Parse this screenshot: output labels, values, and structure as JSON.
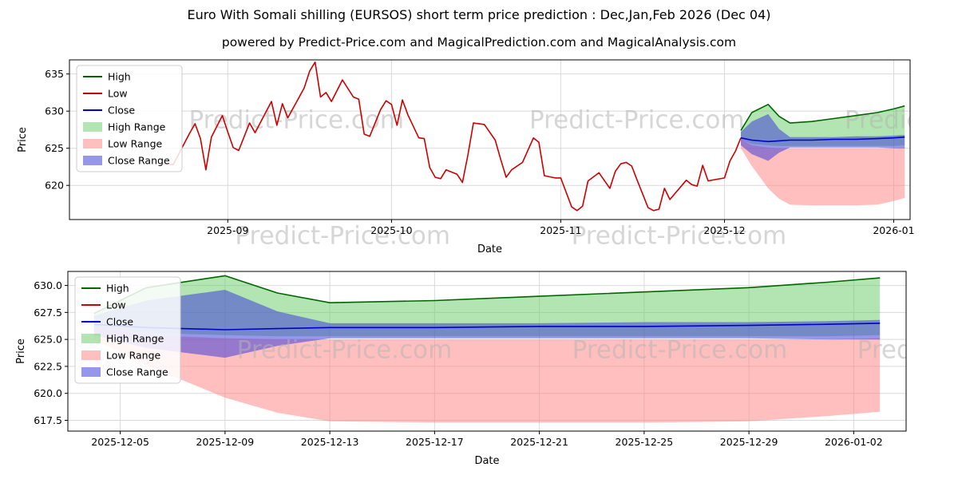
{
  "title": "Euro With Somali shilling (EURSOS) short term price prediction : Dec,Jan,Feb 2026 (Dec 04)",
  "subtitle": "powered by Predict-Price.com and MagicalPrediction.com and MagicalAnalysis.com",
  "watermark": "Predict-Price.com",
  "colors": {
    "high": "#006600",
    "low": "#cc0000",
    "close": "#0000cc",
    "high_range": "#66cc66",
    "low_range": "#ff8080",
    "close_range": "#4040d8",
    "grid": "#d9d9d9"
  },
  "legend": [
    {
      "label": "High",
      "type": "line",
      "color": "#006600"
    },
    {
      "label": "Low",
      "type": "line",
      "color": "#cc0000"
    },
    {
      "label": "Close",
      "type": "line",
      "color": "#0000cc"
    },
    {
      "label": "High Range",
      "type": "patch",
      "color": "#66cc66",
      "opacity": 0.5
    },
    {
      "label": "Low Range",
      "type": "patch",
      "color": "#ff8080",
      "opacity": 0.5
    },
    {
      "label": "Close Range",
      "type": "patch",
      "color": "#4040d8",
      "opacity": 0.55
    }
  ],
  "chart_data": [
    {
      "type": "line",
      "name": "price-history-with-prediction",
      "xlabel": "Date",
      "ylabel": "Price",
      "xlim": [
        "2025-08-03",
        "2026-01-04"
      ],
      "ylim": [
        615.4,
        636.9
      ],
      "grid": true,
      "legend_position": "upper left",
      "xtick_dates": [
        "2025-09-01",
        "2025-10-01",
        "2025-11-01",
        "2025-12-01",
        "2026-01-01"
      ],
      "xtick_labels": [
        "2025-09",
        "2025-10",
        "2025-11",
        "2025-12",
        "2026-01"
      ],
      "ytick_values": [
        620,
        625,
        630,
        635
      ],
      "ytick_labels": [
        "620",
        "625",
        "630",
        "635"
      ],
      "bands": [
        {
          "name": "High Range",
          "color": "#66cc66",
          "opacity": 0.5,
          "dates": [
            "2025-12-04",
            "2025-12-06",
            "2025-12-09",
            "2025-12-11",
            "2025-12-13",
            "2025-12-17",
            "2025-12-21",
            "2025-12-25",
            "2025-12-29",
            "2026-01-01",
            "2026-01-03"
          ],
          "upper": [
            627.4,
            629.8,
            630.9,
            629.3,
            628.4,
            628.6,
            629.0,
            629.4,
            629.8,
            630.3,
            630.7
          ],
          "lower": [
            626.2,
            625.6,
            625.4,
            625.3,
            625.3,
            625.3,
            625.3,
            625.3,
            625.3,
            625.3,
            625.4
          ]
        },
        {
          "name": "Low Range",
          "color": "#ff8080",
          "opacity": 0.5,
          "dates": [
            "2025-12-04",
            "2025-12-06",
            "2025-12-09",
            "2025-12-11",
            "2025-12-13",
            "2025-12-17",
            "2025-12-21",
            "2025-12-25",
            "2025-12-29",
            "2026-01-01",
            "2026-01-03"
          ],
          "upper": [
            626.2,
            625.4,
            625.1,
            625.0,
            625.0,
            625.0,
            625.0,
            625.0,
            625.0,
            625.0,
            625.1
          ],
          "lower": [
            625.0,
            622.6,
            619.6,
            618.2,
            617.4,
            617.3,
            617.3,
            617.3,
            617.4,
            617.9,
            618.3
          ]
        },
        {
          "name": "Close Range",
          "color": "#4040d8",
          "opacity": 0.55,
          "dates": [
            "2025-12-04",
            "2025-12-06",
            "2025-12-09",
            "2025-12-11",
            "2025-12-13",
            "2025-12-17",
            "2025-12-21",
            "2025-12-25",
            "2025-12-29",
            "2026-01-01",
            "2026-01-03"
          ],
          "upper": [
            627.2,
            628.6,
            629.6,
            627.6,
            626.5,
            626.5,
            626.5,
            626.6,
            626.6,
            626.7,
            626.8
          ],
          "lower": [
            625.4,
            624.2,
            623.3,
            624.4,
            625.1,
            625.1,
            625.1,
            625.1,
            625.1,
            625.0,
            625.0
          ]
        }
      ],
      "series": [
        {
          "name": "High",
          "color": "#006600",
          "points": [
            [
              "2025-12-04",
              627.4
            ],
            [
              "2025-12-06",
              629.8
            ],
            [
              "2025-12-09",
              630.9
            ],
            [
              "2025-12-11",
              629.3
            ],
            [
              "2025-12-13",
              628.4
            ],
            [
              "2025-12-17",
              628.6
            ],
            [
              "2025-12-21",
              629.0
            ],
            [
              "2025-12-25",
              629.4
            ],
            [
              "2025-12-29",
              629.8
            ],
            [
              "2026-01-01",
              630.3
            ],
            [
              "2026-01-03",
              630.7
            ]
          ]
        },
        {
          "name": "Low",
          "color": "#cc0000",
          "points": [
            [
              "2025-08-20",
              622.9
            ],
            [
              "2025-08-22",
              622.8
            ],
            [
              "2025-08-25",
              627.0
            ],
            [
              "2025-08-26",
              628.3
            ],
            [
              "2025-08-27",
              626.3
            ],
            [
              "2025-08-28",
              622.1
            ],
            [
              "2025-08-29",
              626.5
            ],
            [
              "2025-08-31",
              629.4
            ],
            [
              "2025-09-01",
              627.2
            ],
            [
              "2025-09-02",
              625.1
            ],
            [
              "2025-09-03",
              624.7
            ],
            [
              "2025-09-05",
              628.4
            ],
            [
              "2025-09-06",
              627.1
            ],
            [
              "2025-09-09",
              631.3
            ],
            [
              "2025-09-10",
              628.1
            ],
            [
              "2025-09-11",
              631.0
            ],
            [
              "2025-09-12",
              629.1
            ],
            [
              "2025-09-15",
              633.1
            ],
            [
              "2025-09-16",
              635.4
            ],
            [
              "2025-09-17",
              636.6
            ],
            [
              "2025-09-18",
              631.9
            ],
            [
              "2025-09-19",
              632.5
            ],
            [
              "2025-09-20",
              631.3
            ],
            [
              "2025-09-22",
              634.2
            ],
            [
              "2025-09-24",
              631.9
            ],
            [
              "2025-09-25",
              631.6
            ],
            [
              "2025-09-26",
              626.9
            ],
            [
              "2025-09-27",
              626.6
            ],
            [
              "2025-09-29",
              630.2
            ],
            [
              "2025-09-30",
              631.4
            ],
            [
              "2025-10-01",
              630.9
            ],
            [
              "2025-10-02",
              628.1
            ],
            [
              "2025-10-03",
              631.5
            ],
            [
              "2025-10-04",
              629.5
            ],
            [
              "2025-10-06",
              626.4
            ],
            [
              "2025-10-07",
              626.3
            ],
            [
              "2025-10-08",
              622.4
            ],
            [
              "2025-10-09",
              621.1
            ],
            [
              "2025-10-10",
              620.9
            ],
            [
              "2025-10-11",
              622.1
            ],
            [
              "2025-10-13",
              621.5
            ],
            [
              "2025-10-14",
              620.4
            ],
            [
              "2025-10-15",
              624.1
            ],
            [
              "2025-10-16",
              628.4
            ],
            [
              "2025-10-18",
              628.2
            ],
            [
              "2025-10-20",
              626.1
            ],
            [
              "2025-10-21",
              623.5
            ],
            [
              "2025-10-22",
              621.1
            ],
            [
              "2025-10-23",
              622.1
            ],
            [
              "2025-10-25",
              623.1
            ],
            [
              "2025-10-27",
              626.4
            ],
            [
              "2025-10-28",
              625.8
            ],
            [
              "2025-10-29",
              621.3
            ],
            [
              "2025-10-31",
              621.0
            ],
            [
              "2025-11-01",
              621.0
            ],
            [
              "2025-11-03",
              617.1
            ],
            [
              "2025-11-04",
              616.6
            ],
            [
              "2025-11-05",
              617.2
            ],
            [
              "2025-11-06",
              620.6
            ],
            [
              "2025-11-08",
              621.7
            ],
            [
              "2025-11-10",
              619.6
            ],
            [
              "2025-11-11",
              621.9
            ],
            [
              "2025-11-12",
              622.9
            ],
            [
              "2025-11-13",
              623.1
            ],
            [
              "2025-11-14",
              622.6
            ],
            [
              "2025-11-15",
              620.7
            ],
            [
              "2025-11-17",
              617.0
            ],
            [
              "2025-11-18",
              616.6
            ],
            [
              "2025-11-19",
              616.8
            ],
            [
              "2025-11-20",
              619.6
            ],
            [
              "2025-11-21",
              618.1
            ],
            [
              "2025-11-24",
              620.7
            ],
            [
              "2025-11-25",
              620.1
            ],
            [
              "2025-11-26",
              619.9
            ],
            [
              "2025-11-27",
              622.7
            ],
            [
              "2025-11-28",
              620.6
            ],
            [
              "2025-12-01",
              621.0
            ],
            [
              "2025-12-02",
              623.3
            ],
            [
              "2025-12-03",
              624.6
            ],
            [
              "2025-12-04",
              626.4
            ]
          ]
        },
        {
          "name": "Close",
          "color": "#0000cc",
          "points": [
            [
              "2025-12-04",
              626.4
            ],
            [
              "2025-12-06",
              626.1
            ],
            [
              "2025-12-09",
              625.9
            ],
            [
              "2025-12-11",
              626.0
            ],
            [
              "2025-12-13",
              626.1
            ],
            [
              "2025-12-17",
              626.1
            ],
            [
              "2025-12-21",
              626.2
            ],
            [
              "2025-12-25",
              626.2
            ],
            [
              "2025-12-29",
              626.3
            ],
            [
              "2026-01-01",
              626.4
            ],
            [
              "2026-01-03",
              626.5
            ]
          ]
        }
      ]
    },
    {
      "type": "line",
      "name": "prediction-detail",
      "xlabel": "Date",
      "ylabel": "Price",
      "xlim": [
        "2025-12-03",
        "2026-01-04"
      ],
      "ylim": [
        616.5,
        631.3
      ],
      "grid": true,
      "legend_position": "upper left",
      "xtick_dates": [
        "2025-12-05",
        "2025-12-09",
        "2025-12-13",
        "2025-12-17",
        "2025-12-21",
        "2025-12-25",
        "2025-12-29",
        "2026-01-02"
      ],
      "xtick_labels": [
        "2025-12-05",
        "2025-12-09",
        "2025-12-13",
        "2025-12-17",
        "2025-12-21",
        "2025-12-25",
        "2025-12-29",
        "2026-01-02"
      ],
      "ytick_values": [
        617.5,
        620.0,
        622.5,
        625.0,
        627.5,
        630.0
      ],
      "ytick_labels": [
        "617.5",
        "620.0",
        "622.5",
        "625.0",
        "627.5",
        "630.0"
      ],
      "bands": [
        {
          "name": "High Range",
          "color": "#66cc66",
          "opacity": 0.5,
          "dates": [
            "2025-12-04",
            "2025-12-06",
            "2025-12-09",
            "2025-12-11",
            "2025-12-13",
            "2025-12-17",
            "2025-12-21",
            "2025-12-25",
            "2025-12-29",
            "2026-01-01",
            "2026-01-03"
          ],
          "upper": [
            627.4,
            629.8,
            630.9,
            629.3,
            628.4,
            628.6,
            629.0,
            629.4,
            629.8,
            630.3,
            630.7
          ],
          "lower": [
            626.2,
            625.6,
            625.4,
            625.3,
            625.3,
            625.3,
            625.3,
            625.3,
            625.3,
            625.3,
            625.4
          ]
        },
        {
          "name": "Low Range",
          "color": "#ff8080",
          "opacity": 0.5,
          "dates": [
            "2025-12-04",
            "2025-12-06",
            "2025-12-09",
            "2025-12-11",
            "2025-12-13",
            "2025-12-17",
            "2025-12-21",
            "2025-12-25",
            "2025-12-29",
            "2026-01-01",
            "2026-01-03"
          ],
          "upper": [
            626.2,
            625.4,
            625.1,
            625.0,
            625.0,
            625.0,
            625.0,
            625.0,
            625.0,
            625.0,
            625.1
          ],
          "lower": [
            625.0,
            622.6,
            619.6,
            618.2,
            617.4,
            617.3,
            617.3,
            617.3,
            617.4,
            617.9,
            618.3
          ]
        },
        {
          "name": "Close Range",
          "color": "#4040d8",
          "opacity": 0.55,
          "dates": [
            "2025-12-04",
            "2025-12-06",
            "2025-12-09",
            "2025-12-11",
            "2025-12-13",
            "2025-12-17",
            "2025-12-21",
            "2025-12-25",
            "2025-12-29",
            "2026-01-01",
            "2026-01-03"
          ],
          "upper": [
            627.2,
            628.6,
            629.6,
            627.6,
            626.5,
            626.5,
            626.5,
            626.6,
            626.6,
            626.7,
            626.8
          ],
          "lower": [
            625.4,
            624.2,
            623.3,
            624.4,
            625.1,
            625.1,
            625.1,
            625.1,
            625.1,
            625.0,
            625.0
          ]
        }
      ],
      "series": [
        {
          "name": "High",
          "color": "#006600",
          "points": [
            [
              "2025-12-04",
              627.4
            ],
            [
              "2025-12-06",
              629.8
            ],
            [
              "2025-12-09",
              630.9
            ],
            [
              "2025-12-11",
              629.3
            ],
            [
              "2025-12-13",
              628.4
            ],
            [
              "2025-12-17",
              628.6
            ],
            [
              "2025-12-21",
              629.0
            ],
            [
              "2025-12-25",
              629.4
            ],
            [
              "2025-12-29",
              629.8
            ],
            [
              "2026-01-01",
              630.3
            ],
            [
              "2026-01-03",
              630.7
            ]
          ]
        },
        {
          "name": "Close",
          "color": "#0000cc",
          "points": [
            [
              "2025-12-04",
              626.4
            ],
            [
              "2025-12-06",
              626.1
            ],
            [
              "2025-12-09",
              625.9
            ],
            [
              "2025-12-11",
              626.0
            ],
            [
              "2025-12-13",
              626.1
            ],
            [
              "2025-12-17",
              626.1
            ],
            [
              "2025-12-21",
              626.2
            ],
            [
              "2025-12-25",
              626.2
            ],
            [
              "2025-12-29",
              626.3
            ],
            [
              "2026-01-01",
              626.4
            ],
            [
              "2026-01-03",
              626.5
            ]
          ]
        }
      ]
    }
  ]
}
